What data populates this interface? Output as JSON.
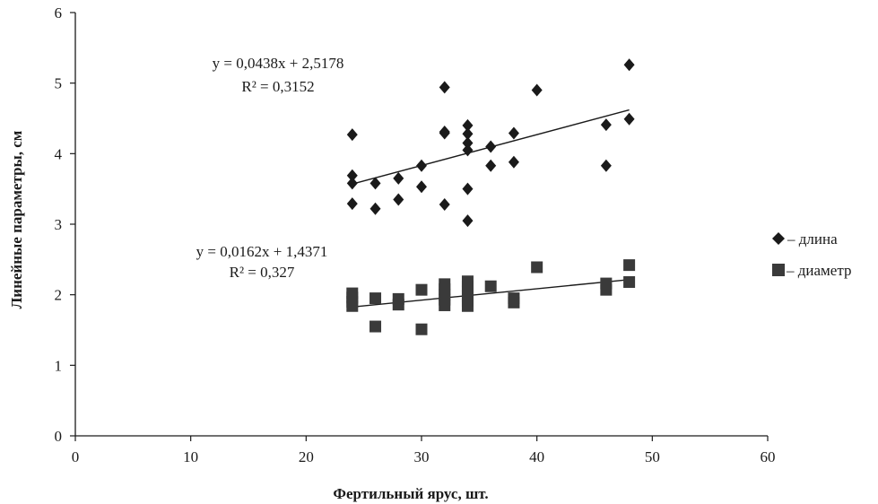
{
  "chart_data": {
    "type": "scatter",
    "xlabel": "Фертильный ярус, шт.",
    "ylabel": "Линейные параметры, см",
    "xlim": [
      0,
      60
    ],
    "ylim": [
      0,
      6
    ],
    "xticks": [
      0,
      10,
      20,
      30,
      40,
      50,
      60
    ],
    "yticks": [
      0,
      1,
      2,
      3,
      4,
      5,
      6
    ],
    "grid": false,
    "legend_position": "right",
    "series": [
      {
        "name": "– длина",
        "marker": "diamond",
        "color": "#1a1a1a",
        "points": [
          [
            24,
            4.27
          ],
          [
            24,
            3.69
          ],
          [
            24,
            3.58
          ],
          [
            24,
            3.29
          ],
          [
            26,
            3.58
          ],
          [
            26,
            3.22
          ],
          [
            28,
            3.65
          ],
          [
            28,
            3.35
          ],
          [
            30,
            3.83
          ],
          [
            30,
            3.53
          ],
          [
            32,
            4.94
          ],
          [
            32,
            4.31
          ],
          [
            32,
            4.29
          ],
          [
            32,
            3.28
          ],
          [
            34,
            4.4
          ],
          [
            34,
            4.28
          ],
          [
            34,
            4.15
          ],
          [
            34,
            4.05
          ],
          [
            34,
            3.5
          ],
          [
            34,
            3.05
          ],
          [
            36,
            4.1
          ],
          [
            36,
            3.83
          ],
          [
            38,
            4.29
          ],
          [
            38,
            3.88
          ],
          [
            40,
            4.9
          ],
          [
            46,
            4.41
          ],
          [
            46,
            3.83
          ],
          [
            48,
            5.26
          ],
          [
            48,
            4.49
          ]
        ],
        "trendline": {
          "equation": "y = 0,0438x + 2,5178",
          "r2": "R² = 0,3152",
          "slope": 0.0438,
          "intercept": 2.5178,
          "x_range": [
            24,
            48
          ]
        }
      },
      {
        "name": "– диаметр",
        "marker": "square",
        "color": "#3a3a3a",
        "points": [
          [
            24,
            2.02
          ],
          [
            24,
            1.96
          ],
          [
            24,
            1.9
          ],
          [
            24,
            1.84
          ],
          [
            26,
            1.95
          ],
          [
            26,
            1.55
          ],
          [
            28,
            1.94
          ],
          [
            28,
            1.86
          ],
          [
            30,
            2.07
          ],
          [
            30,
            1.51
          ],
          [
            32,
            2.15
          ],
          [
            32,
            2.08
          ],
          [
            32,
            2.0
          ],
          [
            32,
            1.93
          ],
          [
            32,
            1.85
          ],
          [
            34,
            2.19
          ],
          [
            34,
            2.12
          ],
          [
            34,
            2.05
          ],
          [
            34,
            1.98
          ],
          [
            34,
            1.91
          ],
          [
            34,
            1.84
          ],
          [
            36,
            2.12
          ],
          [
            38,
            1.95
          ],
          [
            38,
            1.89
          ],
          [
            40,
            2.39
          ],
          [
            46,
            2.16
          ],
          [
            46,
            2.07
          ],
          [
            48,
            2.42
          ],
          [
            48,
            2.18
          ]
        ],
        "trendline": {
          "equation": "y = 0,0162x + 1,4371",
          "r2": "R² = 0,327",
          "slope": 0.0162,
          "intercept": 1.4371,
          "x_range": [
            24,
            48
          ]
        }
      }
    ]
  }
}
